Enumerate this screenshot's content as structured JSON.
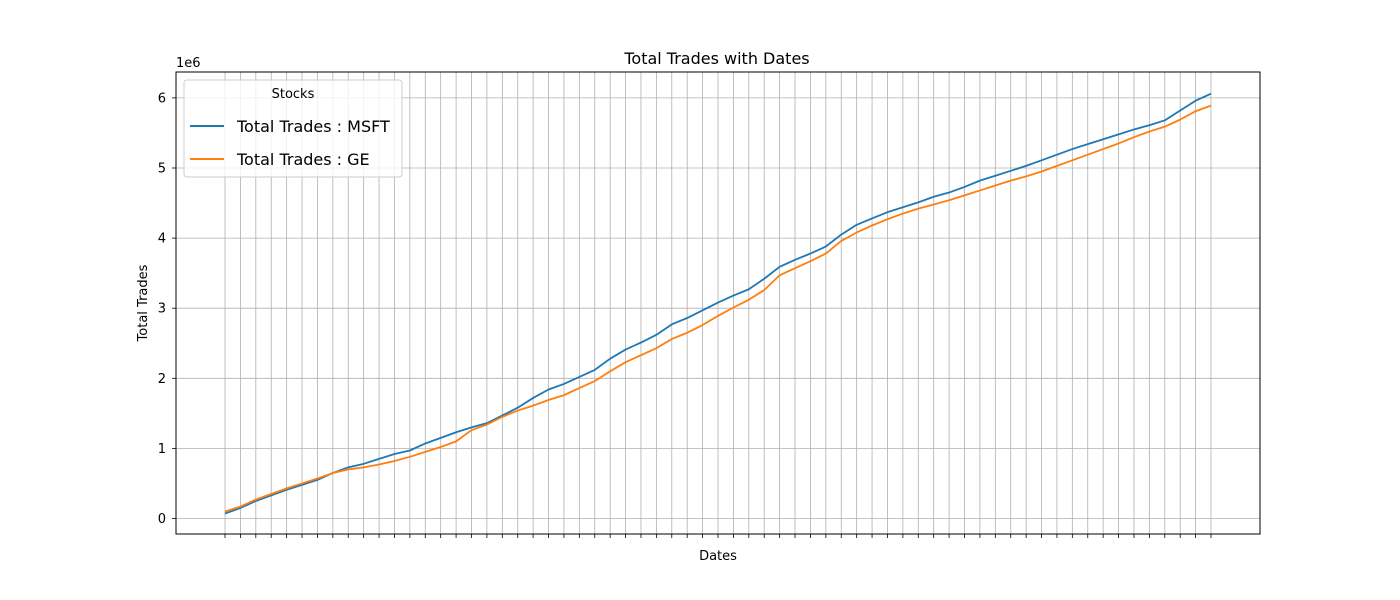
{
  "chart_data": {
    "type": "line",
    "title": "Total Trades with Dates",
    "xlabel": "Dates",
    "ylabel": "Total Trades",
    "y_offset_label": "1e6",
    "x_tick_labels_visible": false,
    "ylim": [
      -0.2,
      6.4
    ],
    "y_ticks": [
      0,
      1,
      2,
      3,
      4,
      5,
      6
    ],
    "y_tick_labels": [
      "0",
      "1",
      "2",
      "3",
      "4",
      "5",
      "6"
    ],
    "grid": true,
    "legend": {
      "title": "Stocks",
      "placement": "top-left"
    },
    "series": [
      {
        "name": "Total Trades : MSFT",
        "color": "#1f77b4",
        "values": [
          0.07,
          0.15,
          0.25,
          0.33,
          0.41,
          0.48,
          0.55,
          0.65,
          0.73,
          0.78,
          0.85,
          0.92,
          0.97,
          1.07,
          1.15,
          1.23,
          1.3,
          1.36,
          1.47,
          1.58,
          1.72,
          1.84,
          1.92,
          2.02,
          2.12,
          2.28,
          2.41,
          2.51,
          2.62,
          2.77,
          2.86,
          2.97,
          3.08,
          3.18,
          3.27,
          3.42,
          3.59,
          3.69,
          3.78,
          3.88,
          4.05,
          4.19,
          4.28,
          4.37,
          4.44,
          4.51,
          4.59,
          4.65,
          4.73,
          4.82,
          4.89,
          4.96,
          5.03,
          5.11,
          5.19,
          5.27,
          5.34,
          5.41,
          5.48,
          5.55,
          5.61,
          5.68,
          5.82,
          5.96,
          6.06
        ]
      },
      {
        "name": "Total Trades : GE",
        "color": "#ff7f0e",
        "values": [
          0.1,
          0.17,
          0.27,
          0.35,
          0.43,
          0.5,
          0.57,
          0.65,
          0.7,
          0.73,
          0.77,
          0.82,
          0.88,
          0.95,
          1.02,
          1.1,
          1.26,
          1.34,
          1.45,
          1.54,
          1.61,
          1.69,
          1.76,
          1.86,
          1.96,
          2.1,
          2.23,
          2.33,
          2.43,
          2.56,
          2.65,
          2.76,
          2.89,
          3.01,
          3.12,
          3.26,
          3.47,
          3.57,
          3.67,
          3.78,
          3.96,
          4.08,
          4.18,
          4.27,
          4.35,
          4.42,
          4.48,
          4.54,
          4.61,
          4.68,
          4.75,
          4.82,
          4.88,
          4.95,
          5.03,
          5.11,
          5.19,
          5.27,
          5.35,
          5.44,
          5.52,
          5.59,
          5.69,
          5.81,
          5.89
        ]
      }
    ]
  }
}
